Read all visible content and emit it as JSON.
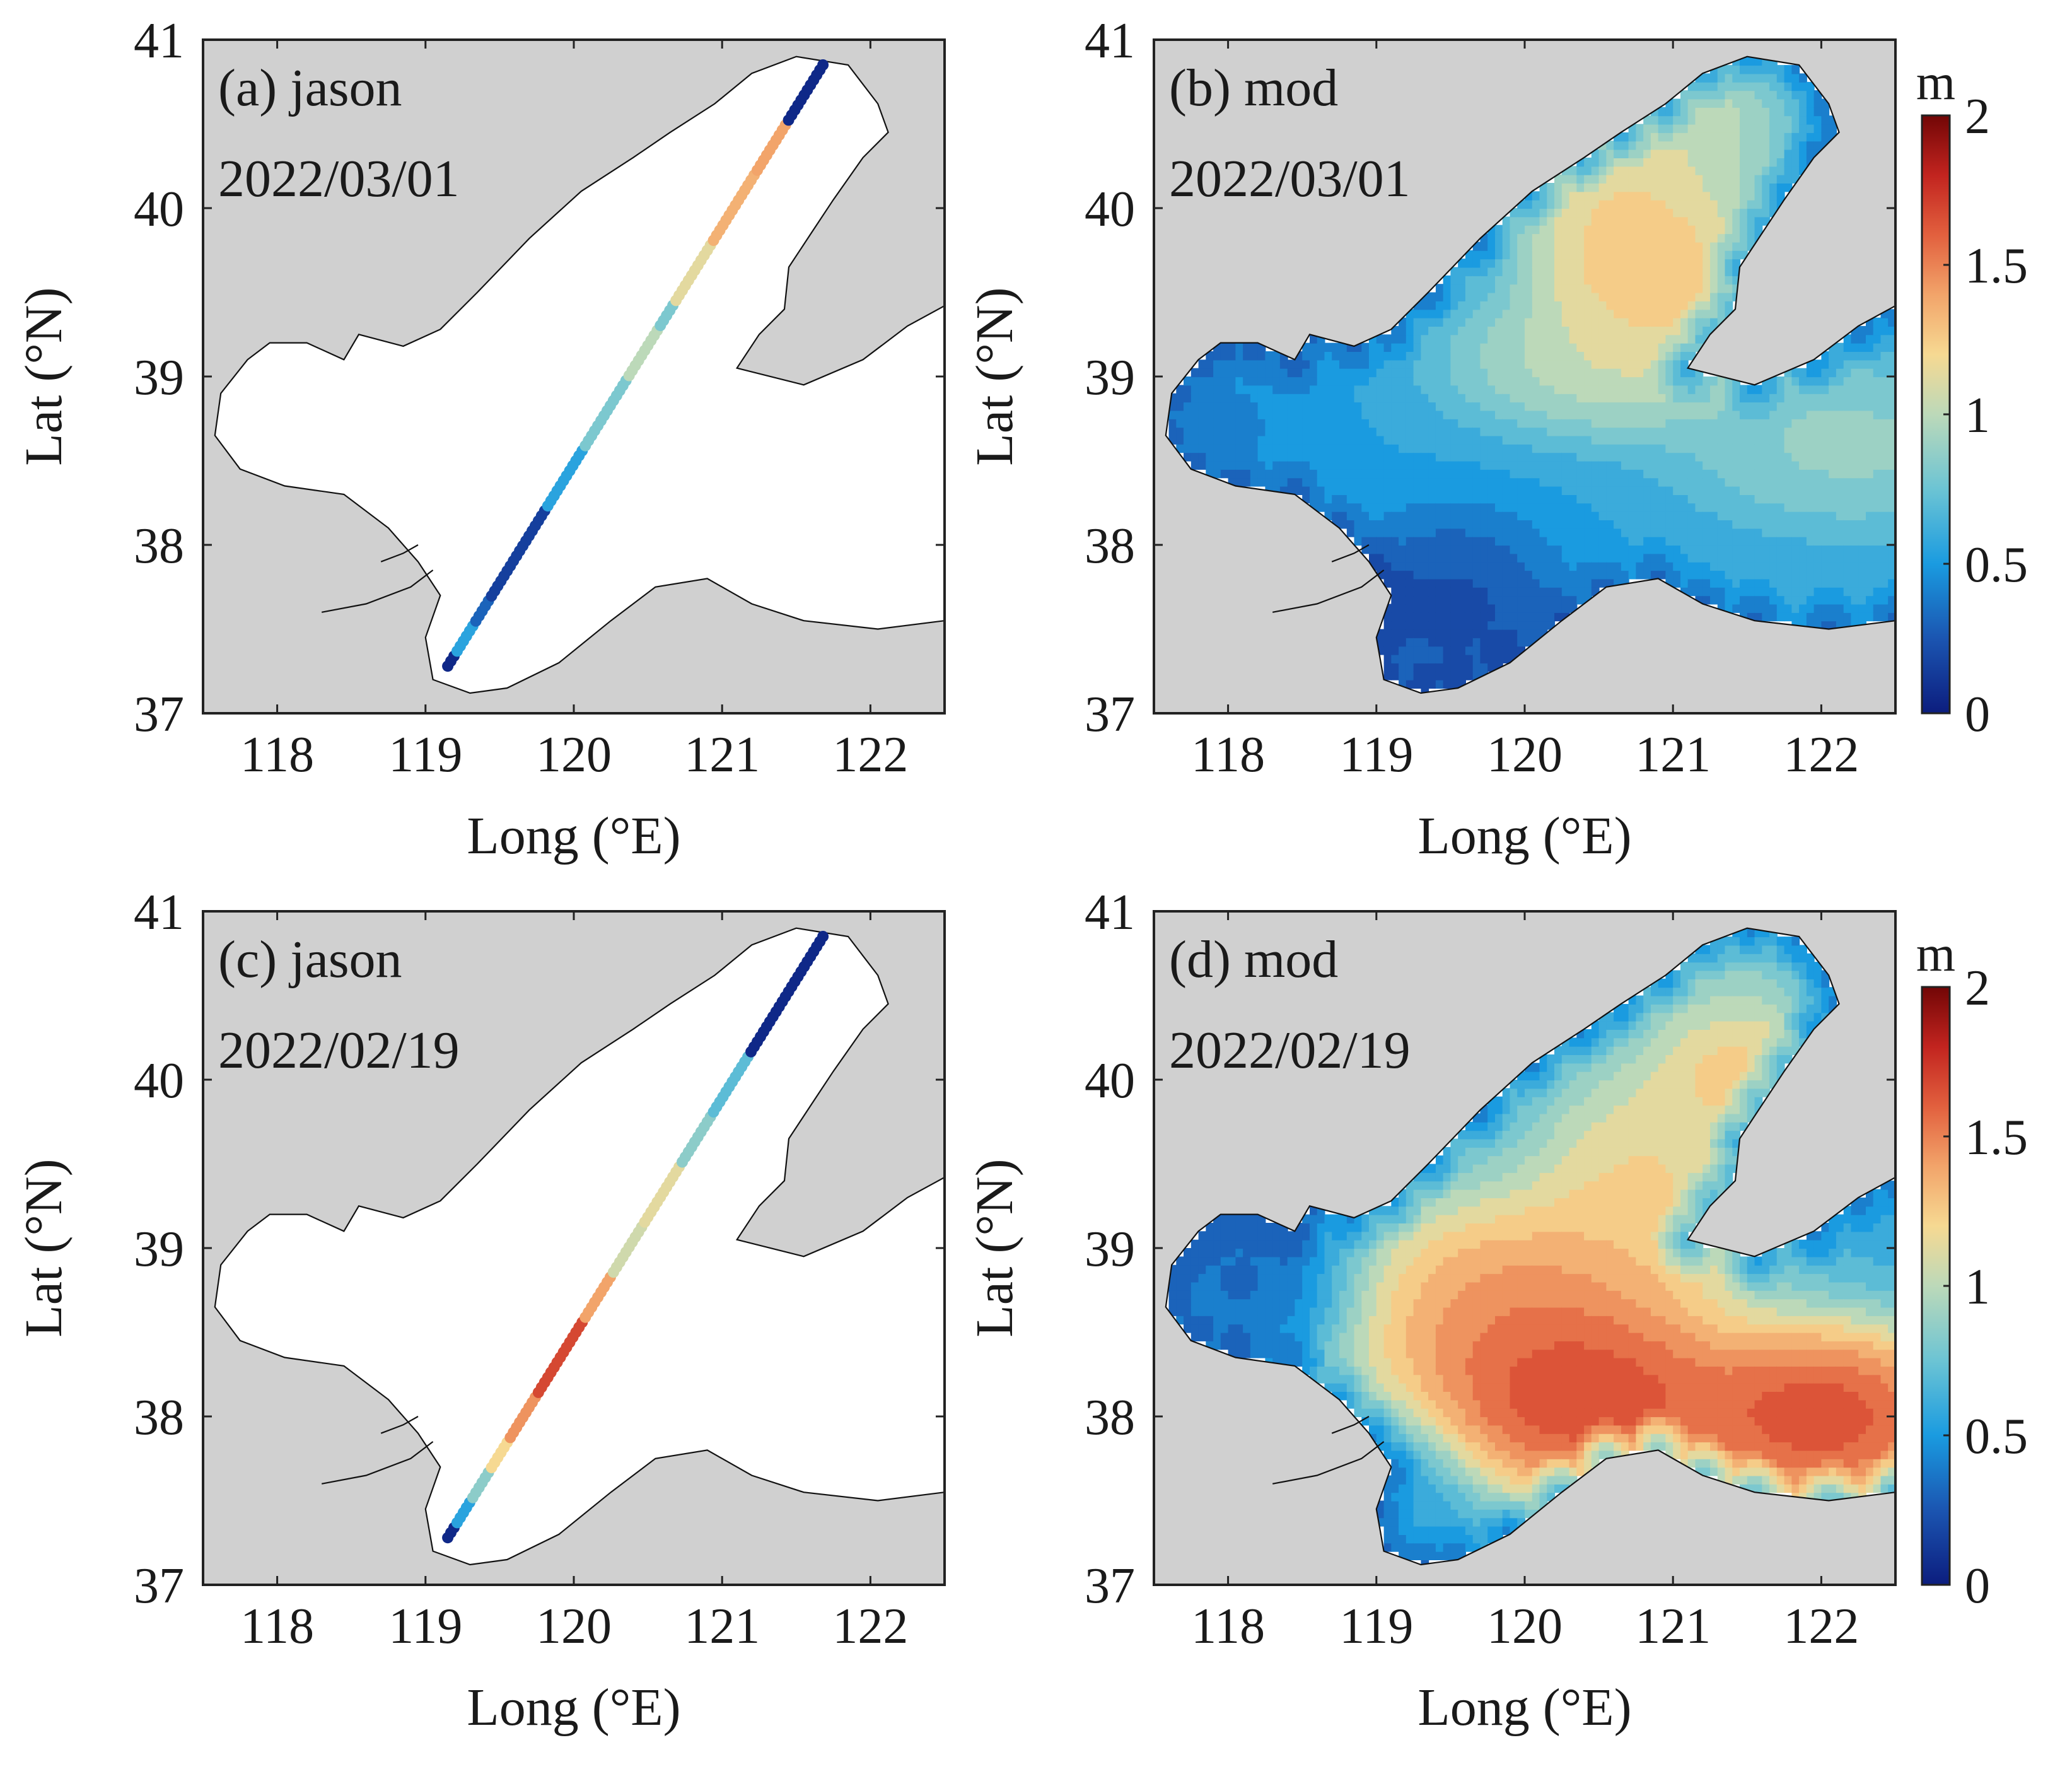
{
  "figure": {
    "background": "#ffffff",
    "land_color": "#d0d0d0",
    "sea_color": "#ffffff"
  },
  "chart_data": [
    {
      "type": "map-track-scatter",
      "panel": "a",
      "label": "(a) jason",
      "date": "2022/03/01",
      "xlabel": "Long (°E)",
      "ylabel": "Lat (°N)",
      "xlim": [
        117.5,
        122.5
      ],
      "ylim": [
        37,
        41
      ],
      "xticks": [
        "118",
        "119",
        "120",
        "121",
        "122"
      ],
      "yticks": [
        "37",
        "38",
        "39",
        "40",
        "41"
      ],
      "colorbar": false,
      "track": {
        "start": [
          119.15,
          37.28
        ],
        "end": [
          121.68,
          40.85
        ]
      },
      "segments": [
        {
          "f0": 0.0,
          "f1": 0.02,
          "value": 0.05
        },
        {
          "f0": 0.02,
          "f1": 0.07,
          "value": 0.55
        },
        {
          "f0": 0.07,
          "f1": 0.11,
          "value": 0.3
        },
        {
          "f0": 0.11,
          "f1": 0.26,
          "value": 0.15
        },
        {
          "f0": 0.26,
          "f1": 0.36,
          "value": 0.55
        },
        {
          "f0": 0.36,
          "f1": 0.48,
          "value": 0.8
        },
        {
          "f0": 0.48,
          "f1": 0.56,
          "value": 1.0
        },
        {
          "f0": 0.56,
          "f1": 0.6,
          "value": 0.8
        },
        {
          "f0": 0.6,
          "f1": 0.7,
          "value": 1.1
        },
        {
          "f0": 0.7,
          "f1": 0.82,
          "value": 1.3
        },
        {
          "f0": 0.82,
          "f1": 0.9,
          "value": 1.35
        },
        {
          "f0": 0.9,
          "f1": 1.0,
          "value": 0.05
        }
      ]
    },
    {
      "type": "map-filled-contour",
      "panel": "b",
      "label": "(b) mod",
      "date": "2022/03/01",
      "xlabel": "Long (°E)",
      "ylabel": "Lat (°N)",
      "xlim": [
        117.5,
        122.5
      ],
      "ylim": [
        37,
        41
      ],
      "xticks": [
        "118",
        "119",
        "120",
        "121",
        "122"
      ],
      "yticks": [
        "37",
        "38",
        "39",
        "40",
        "41"
      ],
      "colorbar": true,
      "colorbar_unit": "m",
      "clim": [
        0,
        2
      ],
      "colorbar_ticks": [
        "0",
        "0.5",
        "1",
        "1.5",
        "2"
      ],
      "field": {
        "background": 0.55,
        "sources": [
          {
            "lon": 120.9,
            "lat": 39.6,
            "value": 1.45,
            "rlon": 0.6,
            "rlat": 0.5
          },
          {
            "lon": 120.6,
            "lat": 40.0,
            "value": 1.3,
            "rlon": 0.5,
            "rlat": 0.6
          },
          {
            "lon": 121.2,
            "lat": 40.5,
            "value": 1.15,
            "rlon": 0.45,
            "rlat": 0.45
          },
          {
            "lon": 120.5,
            "lat": 39.1,
            "value": 1.15,
            "rlon": 0.8,
            "rlat": 0.35
          },
          {
            "lon": 122.2,
            "lat": 38.6,
            "value": 1.0,
            "rlon": 0.9,
            "rlat": 0.4
          },
          {
            "lon": 119.5,
            "lat": 37.6,
            "value": 0.1,
            "rlon": 0.6,
            "rlat": 0.45
          },
          {
            "lon": 118.0,
            "lat": 38.7,
            "value": 0.4,
            "rlon": 0.5,
            "rlat": 0.5
          }
        ]
      }
    },
    {
      "type": "map-track-scatter",
      "panel": "c",
      "label": "(c) jason",
      "date": "2022/02/19",
      "xlabel": "Long (°E)",
      "ylabel": "Lat (°N)",
      "xlim": [
        117.5,
        122.5
      ],
      "ylim": [
        37,
        41
      ],
      "xticks": [
        "118",
        "119",
        "120",
        "121",
        "122"
      ],
      "yticks": [
        "37",
        "38",
        "39",
        "40",
        "41"
      ],
      "colorbar": false,
      "track": {
        "start": [
          119.15,
          37.28
        ],
        "end": [
          121.68,
          40.85
        ]
      },
      "segments": [
        {
          "f0": 0.0,
          "f1": 0.02,
          "value": 0.05
        },
        {
          "f0": 0.02,
          "f1": 0.06,
          "value": 0.55
        },
        {
          "f0": 0.06,
          "f1": 0.11,
          "value": 0.85
        },
        {
          "f0": 0.11,
          "f1": 0.16,
          "value": 1.15
        },
        {
          "f0": 0.16,
          "f1": 0.24,
          "value": 1.4
        },
        {
          "f0": 0.24,
          "f1": 0.36,
          "value": 1.65
        },
        {
          "f0": 0.36,
          "f1": 0.44,
          "value": 1.35
        },
        {
          "f0": 0.44,
          "f1": 0.52,
          "value": 1.05
        },
        {
          "f0": 0.52,
          "f1": 0.62,
          "value": 1.1
        },
        {
          "f0": 0.62,
          "f1": 0.7,
          "value": 0.85
        },
        {
          "f0": 0.7,
          "f1": 0.8,
          "value": 0.7
        },
        {
          "f0": 0.8,
          "f1": 1.0,
          "value": 0.05
        }
      ]
    },
    {
      "type": "map-filled-contour",
      "panel": "d",
      "label": "(d) mod",
      "date": "2022/02/19",
      "xlabel": "Long (°E)",
      "ylabel": "Lat (°N)",
      "xlim": [
        117.5,
        122.5
      ],
      "ylim": [
        37,
        41
      ],
      "xticks": [
        "118",
        "119",
        "120",
        "121",
        "122"
      ],
      "yticks": [
        "37",
        "38",
        "39",
        "40",
        "41"
      ],
      "colorbar": true,
      "colorbar_unit": "m",
      "clim": [
        0,
        2
      ],
      "colorbar_ticks": [
        "0",
        "0.5",
        "1",
        "1.5",
        "2"
      ],
      "field": {
        "background": 0.6,
        "sources": [
          {
            "lon": 120.4,
            "lat": 38.1,
            "value": 2.0,
            "rlon": 0.8,
            "rlat": 0.45
          },
          {
            "lon": 122.0,
            "lat": 38.0,
            "value": 2.0,
            "rlon": 0.8,
            "rlat": 0.45
          },
          {
            "lon": 120.0,
            "lat": 38.6,
            "value": 1.7,
            "rlon": 1.0,
            "rlat": 0.6
          },
          {
            "lon": 120.8,
            "lat": 39.4,
            "value": 1.35,
            "rlon": 0.6,
            "rlat": 0.6
          },
          {
            "lon": 121.4,
            "lat": 40.1,
            "value": 1.4,
            "rlon": 0.45,
            "rlat": 0.4
          },
          {
            "lon": 121.2,
            "lat": 40.6,
            "value": 0.9,
            "rlon": 0.4,
            "rlat": 0.3
          },
          {
            "lon": 118.2,
            "lat": 38.8,
            "value": 0.2,
            "rlon": 0.5,
            "rlat": 0.4
          },
          {
            "lon": 119.1,
            "lat": 37.5,
            "value": 0.5,
            "rlon": 0.4,
            "rlat": 0.4
          }
        ]
      }
    }
  ]
}
